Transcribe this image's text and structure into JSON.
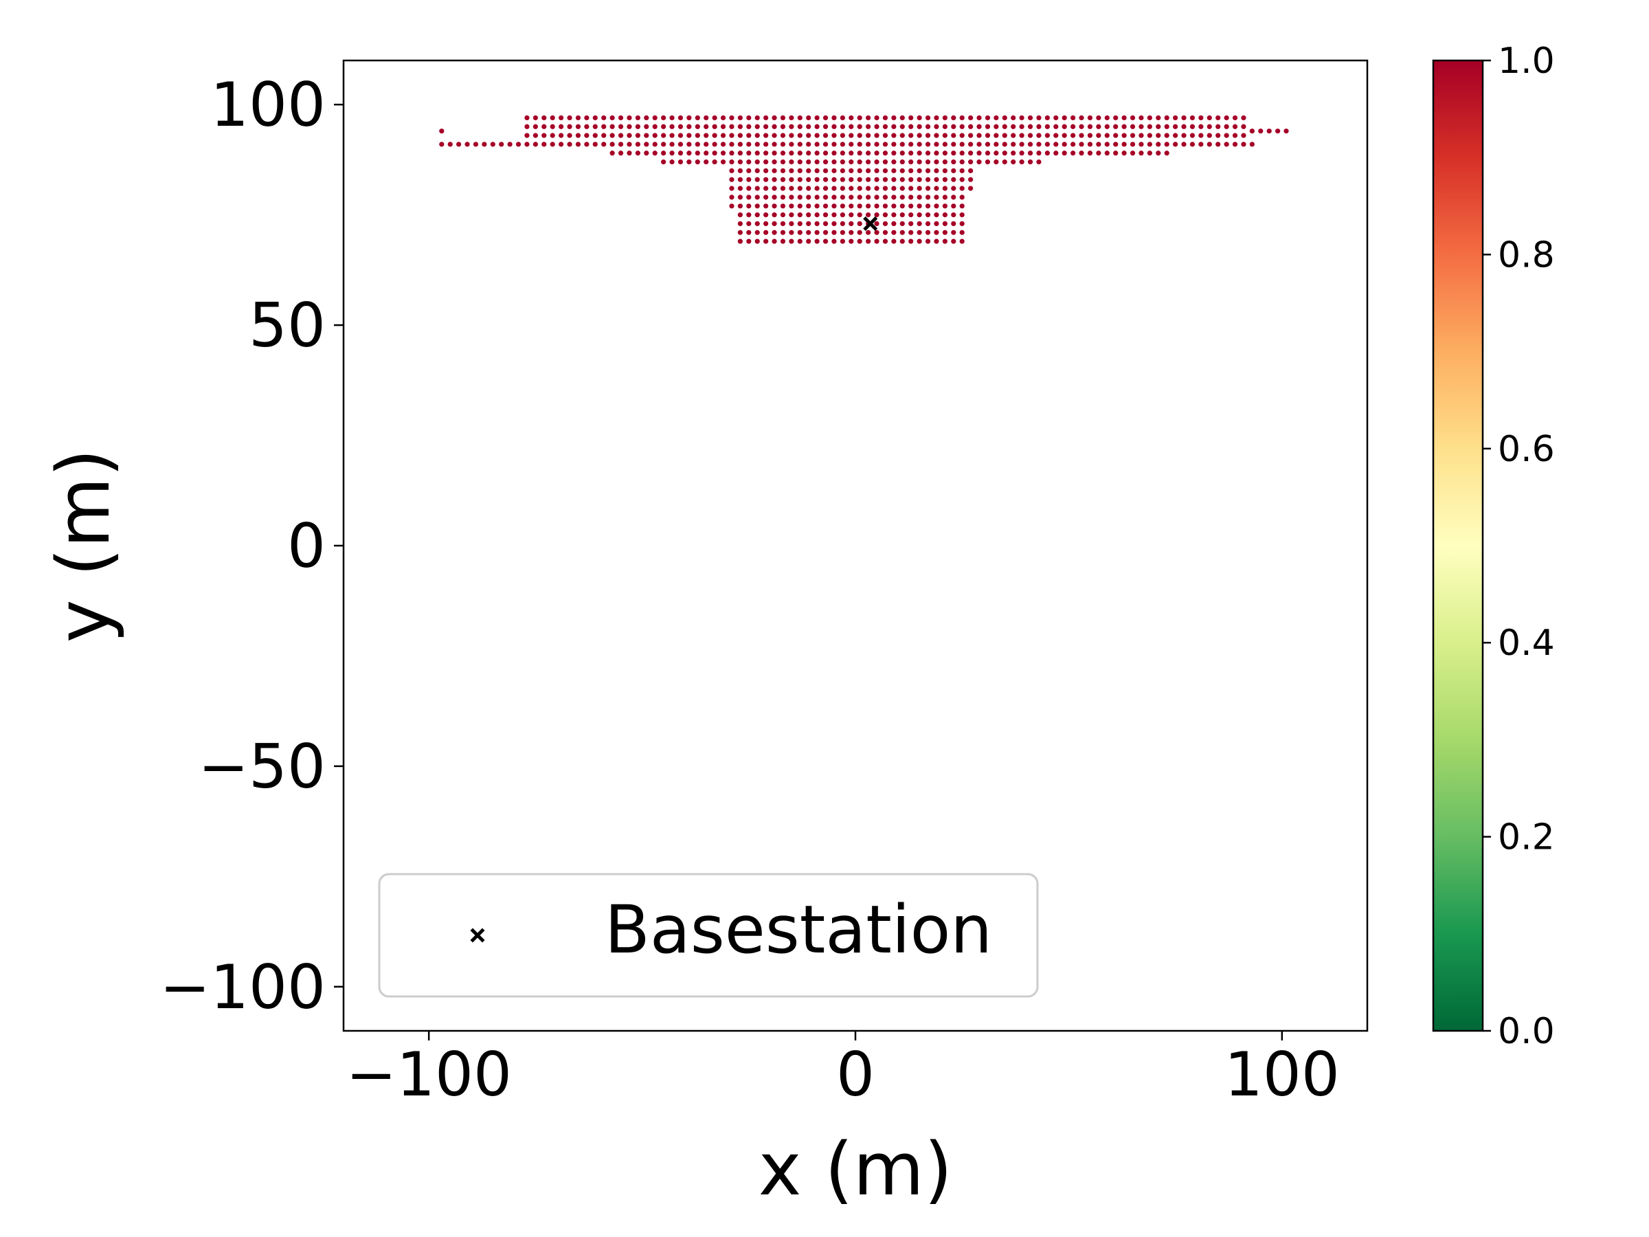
{
  "chart_data": {
    "type": "scatter",
    "title": "",
    "xlabel": "x (m)",
    "ylabel": "y (m)",
    "xlim": [
      -120,
      120
    ],
    "ylim": [
      -110,
      110
    ],
    "xticks": [
      -100,
      0,
      100
    ],
    "xtick_labels": [
      "−100",
      "0",
      "100"
    ],
    "yticks": [
      100,
      50,
      0,
      -50,
      -100
    ],
    "ytick_labels": [
      "100",
      "50",
      "0",
      "−50",
      "−100"
    ],
    "grid": false,
    "legend": {
      "location": "lower-left",
      "entries": [
        {
          "label": "Basestation",
          "marker": "x",
          "color": "#000000"
        }
      ]
    },
    "colorbar": {
      "range": [
        0.0,
        1.0
      ],
      "colormap": "RdYlGn_r",
      "ticks": [
        0.0,
        0.2,
        0.4,
        0.6,
        0.8,
        1.0
      ],
      "tick_labels": [
        "0.0",
        "0.2",
        "0.4",
        "0.6",
        "0.8",
        "1.0"
      ],
      "stops": [
        "#006837",
        "#1a9850",
        "#66bd63",
        "#a6d96a",
        "#d9ef8b",
        "#ffffbf",
        "#fee08b",
        "#fdae61",
        "#f46d43",
        "#d73027",
        "#a50026"
      ]
    },
    "basestation": {
      "x": 3.5,
      "y": 73
    },
    "grid_spacing": 2,
    "point_value": 1.0,
    "point_color": "#a50026",
    "point_rows": [
      {
        "y": 97,
        "x_min": -77,
        "x_max": 91
      },
      {
        "y": 95,
        "x_min": -77,
        "x_max": 91
      },
      {
        "y": 94,
        "x_min": -97,
        "x_max": -97
      },
      {
        "y": 94,
        "x_min": 93,
        "x_max": 101
      },
      {
        "y": 93,
        "x_min": -77,
        "x_max": 91
      },
      {
        "y": 91,
        "x_min": -97,
        "x_max": 93
      },
      {
        "y": 89,
        "x_min": -57,
        "x_max": 73
      },
      {
        "y": 87,
        "x_min": -45,
        "x_max": 43
      },
      {
        "y": 85,
        "x_min": -29,
        "x_max": 27
      },
      {
        "y": 83,
        "x_min": -29,
        "x_max": 27
      },
      {
        "y": 81,
        "x_min": -29,
        "x_max": 27
      },
      {
        "y": 79,
        "x_min": -29,
        "x_max": 25
      },
      {
        "y": 77,
        "x_min": -29,
        "x_max": 25
      },
      {
        "y": 75,
        "x_min": -27,
        "x_max": 25
      },
      {
        "y": 73,
        "x_min": -27,
        "x_max": 25
      },
      {
        "y": 71,
        "x_min": -27,
        "x_max": 25
      },
      {
        "y": 69,
        "x_min": -27,
        "x_max": 25
      }
    ]
  }
}
